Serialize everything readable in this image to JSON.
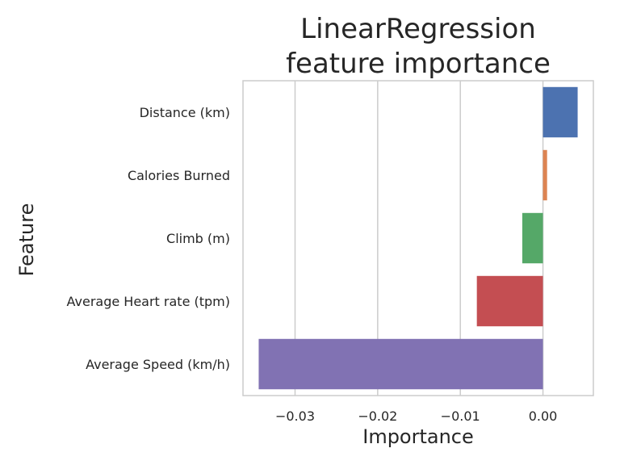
{
  "chart_data": {
    "type": "bar",
    "orientation": "horizontal",
    "title_lines": [
      "LinearRegression",
      "feature importance"
    ],
    "xlabel": "Importance",
    "ylabel": "Feature",
    "categories": [
      "Distance (km)",
      "Calories Burned",
      "Climb (m)",
      "Average Heart rate (tpm)",
      "Average Speed (km/h)"
    ],
    "values": [
      0.0042,
      0.0005,
      -0.0025,
      -0.008,
      -0.0344
    ],
    "colors": [
      "#4c72b0",
      "#dd8452",
      "#55a868",
      "#c44e52",
      "#8172b3"
    ],
    "xlim": [
      -0.0363,
      0.0061
    ],
    "xticks": [
      -0.03,
      -0.02,
      -0.01,
      0.0
    ],
    "xtick_labels": [
      "−0.03",
      "−0.02",
      "−0.01",
      "0.00"
    ],
    "grid": "vertical"
  }
}
